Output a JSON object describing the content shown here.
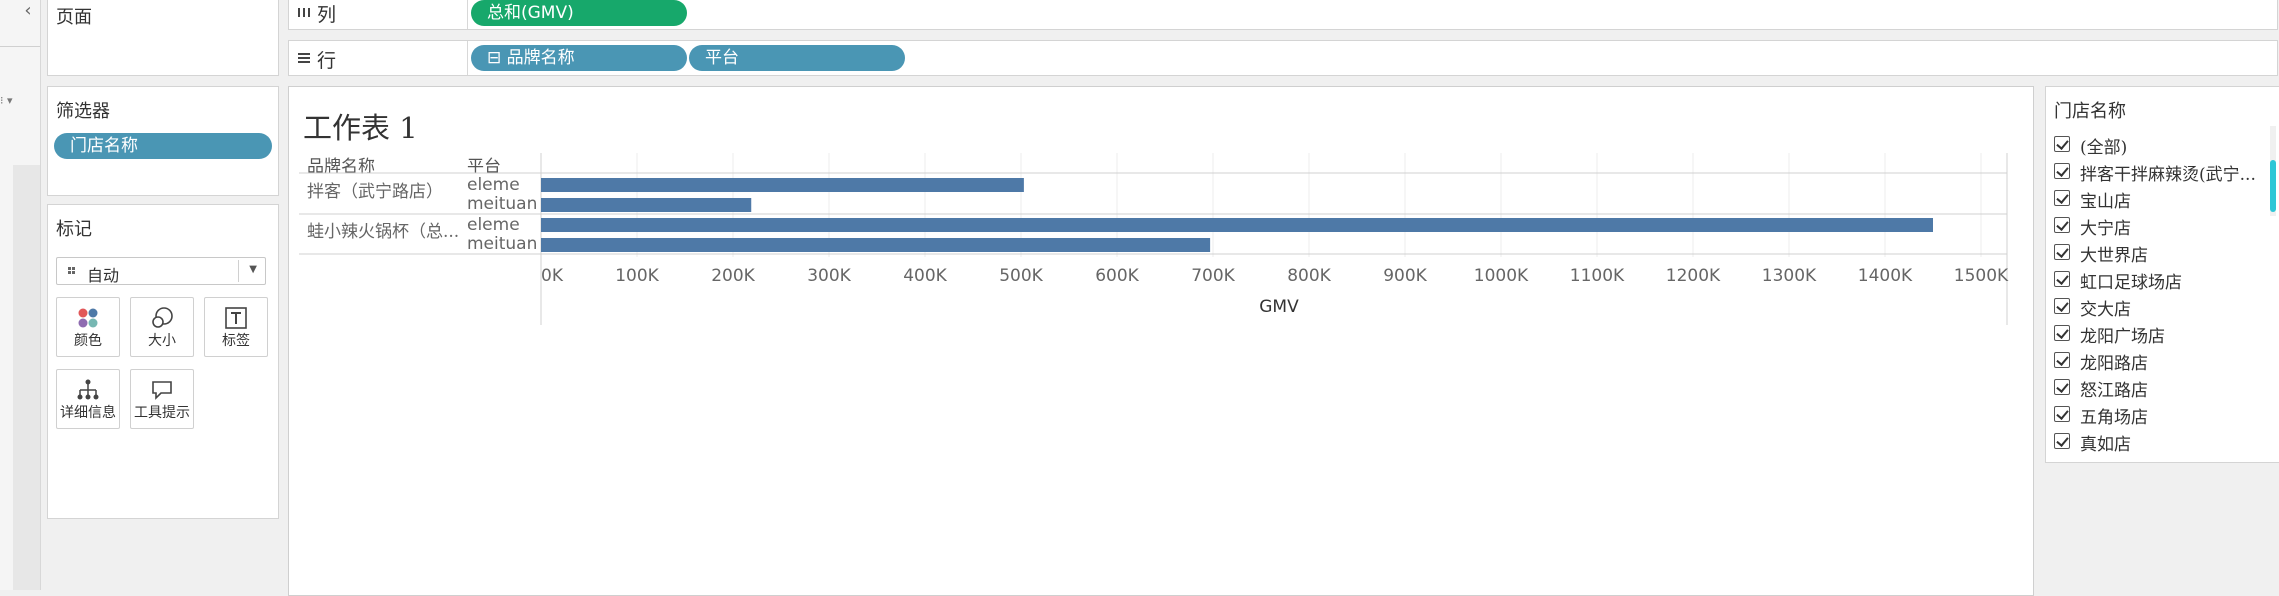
{
  "left_strip": {
    "collapse_glyph": "‹",
    "menu_glyph": "⁝ ▾"
  },
  "pages": {
    "title": "页面"
  },
  "filters": {
    "title": "筛选器",
    "items": [
      "门店名称"
    ]
  },
  "marks": {
    "title": "标记",
    "type_value": "自动",
    "buttons": [
      {
        "label": "颜色",
        "icon": "color-dots-icon"
      },
      {
        "label": "大小",
        "icon": "size-circles-icon"
      },
      {
        "label": "标签",
        "icon": "text-label-icon"
      },
      {
        "label": "详细信息",
        "icon": "detail-tree-icon"
      },
      {
        "label": "工具提示",
        "icon": "tooltip-bubble-icon"
      }
    ]
  },
  "shelves": {
    "columns": {
      "label": "列",
      "icon": "columns-icon",
      "pills": [
        {
          "text": "总和(GMV)",
          "color": "#17a86b"
        }
      ]
    },
    "rows": {
      "label": "行",
      "icon": "rows-icon",
      "pills": [
        {
          "text": "⊟ 品牌名称",
          "color": "#4a96b4"
        },
        {
          "text": "平台",
          "color": "#4a96b4"
        }
      ]
    }
  },
  "sheet": {
    "title": "工作表 1",
    "headers": {
      "brand": "品牌名称",
      "platform": "平台"
    }
  },
  "chart_data": {
    "type": "bar",
    "orientation": "horizontal",
    "xlabel": "GMV",
    "xlim": [
      0,
      1500000
    ],
    "x_ticks": [
      "0K",
      "100K",
      "200K",
      "300K",
      "400K",
      "500K",
      "600K",
      "700K",
      "800K",
      "900K",
      "1000K",
      "1100K",
      "1200K",
      "1300K",
      "1400K",
      "1500K"
    ],
    "grid": true,
    "bar_color": "#4e79a7",
    "groups": [
      {
        "brand": "拌客（武宁路店）",
        "rows": [
          {
            "platform": "eleme",
            "value": 503000
          },
          {
            "platform": "meituan",
            "value": 219000
          }
        ]
      },
      {
        "brand": "蛙小辣火锅杯（总...",
        "rows": [
          {
            "platform": "eleme",
            "value": 1450000
          },
          {
            "platform": "meituan",
            "value": 697000
          }
        ]
      }
    ]
  },
  "legend": {
    "title": "门店名称",
    "items": [
      "(全部)",
      "拌客干拌麻辣烫(武宁...",
      "宝山店",
      "大宁店",
      "大世界店",
      "虹口足球场店",
      "交大店",
      "龙阳广场店",
      "龙阳路店",
      "怒江路店",
      "五角场店",
      "真如店"
    ]
  }
}
